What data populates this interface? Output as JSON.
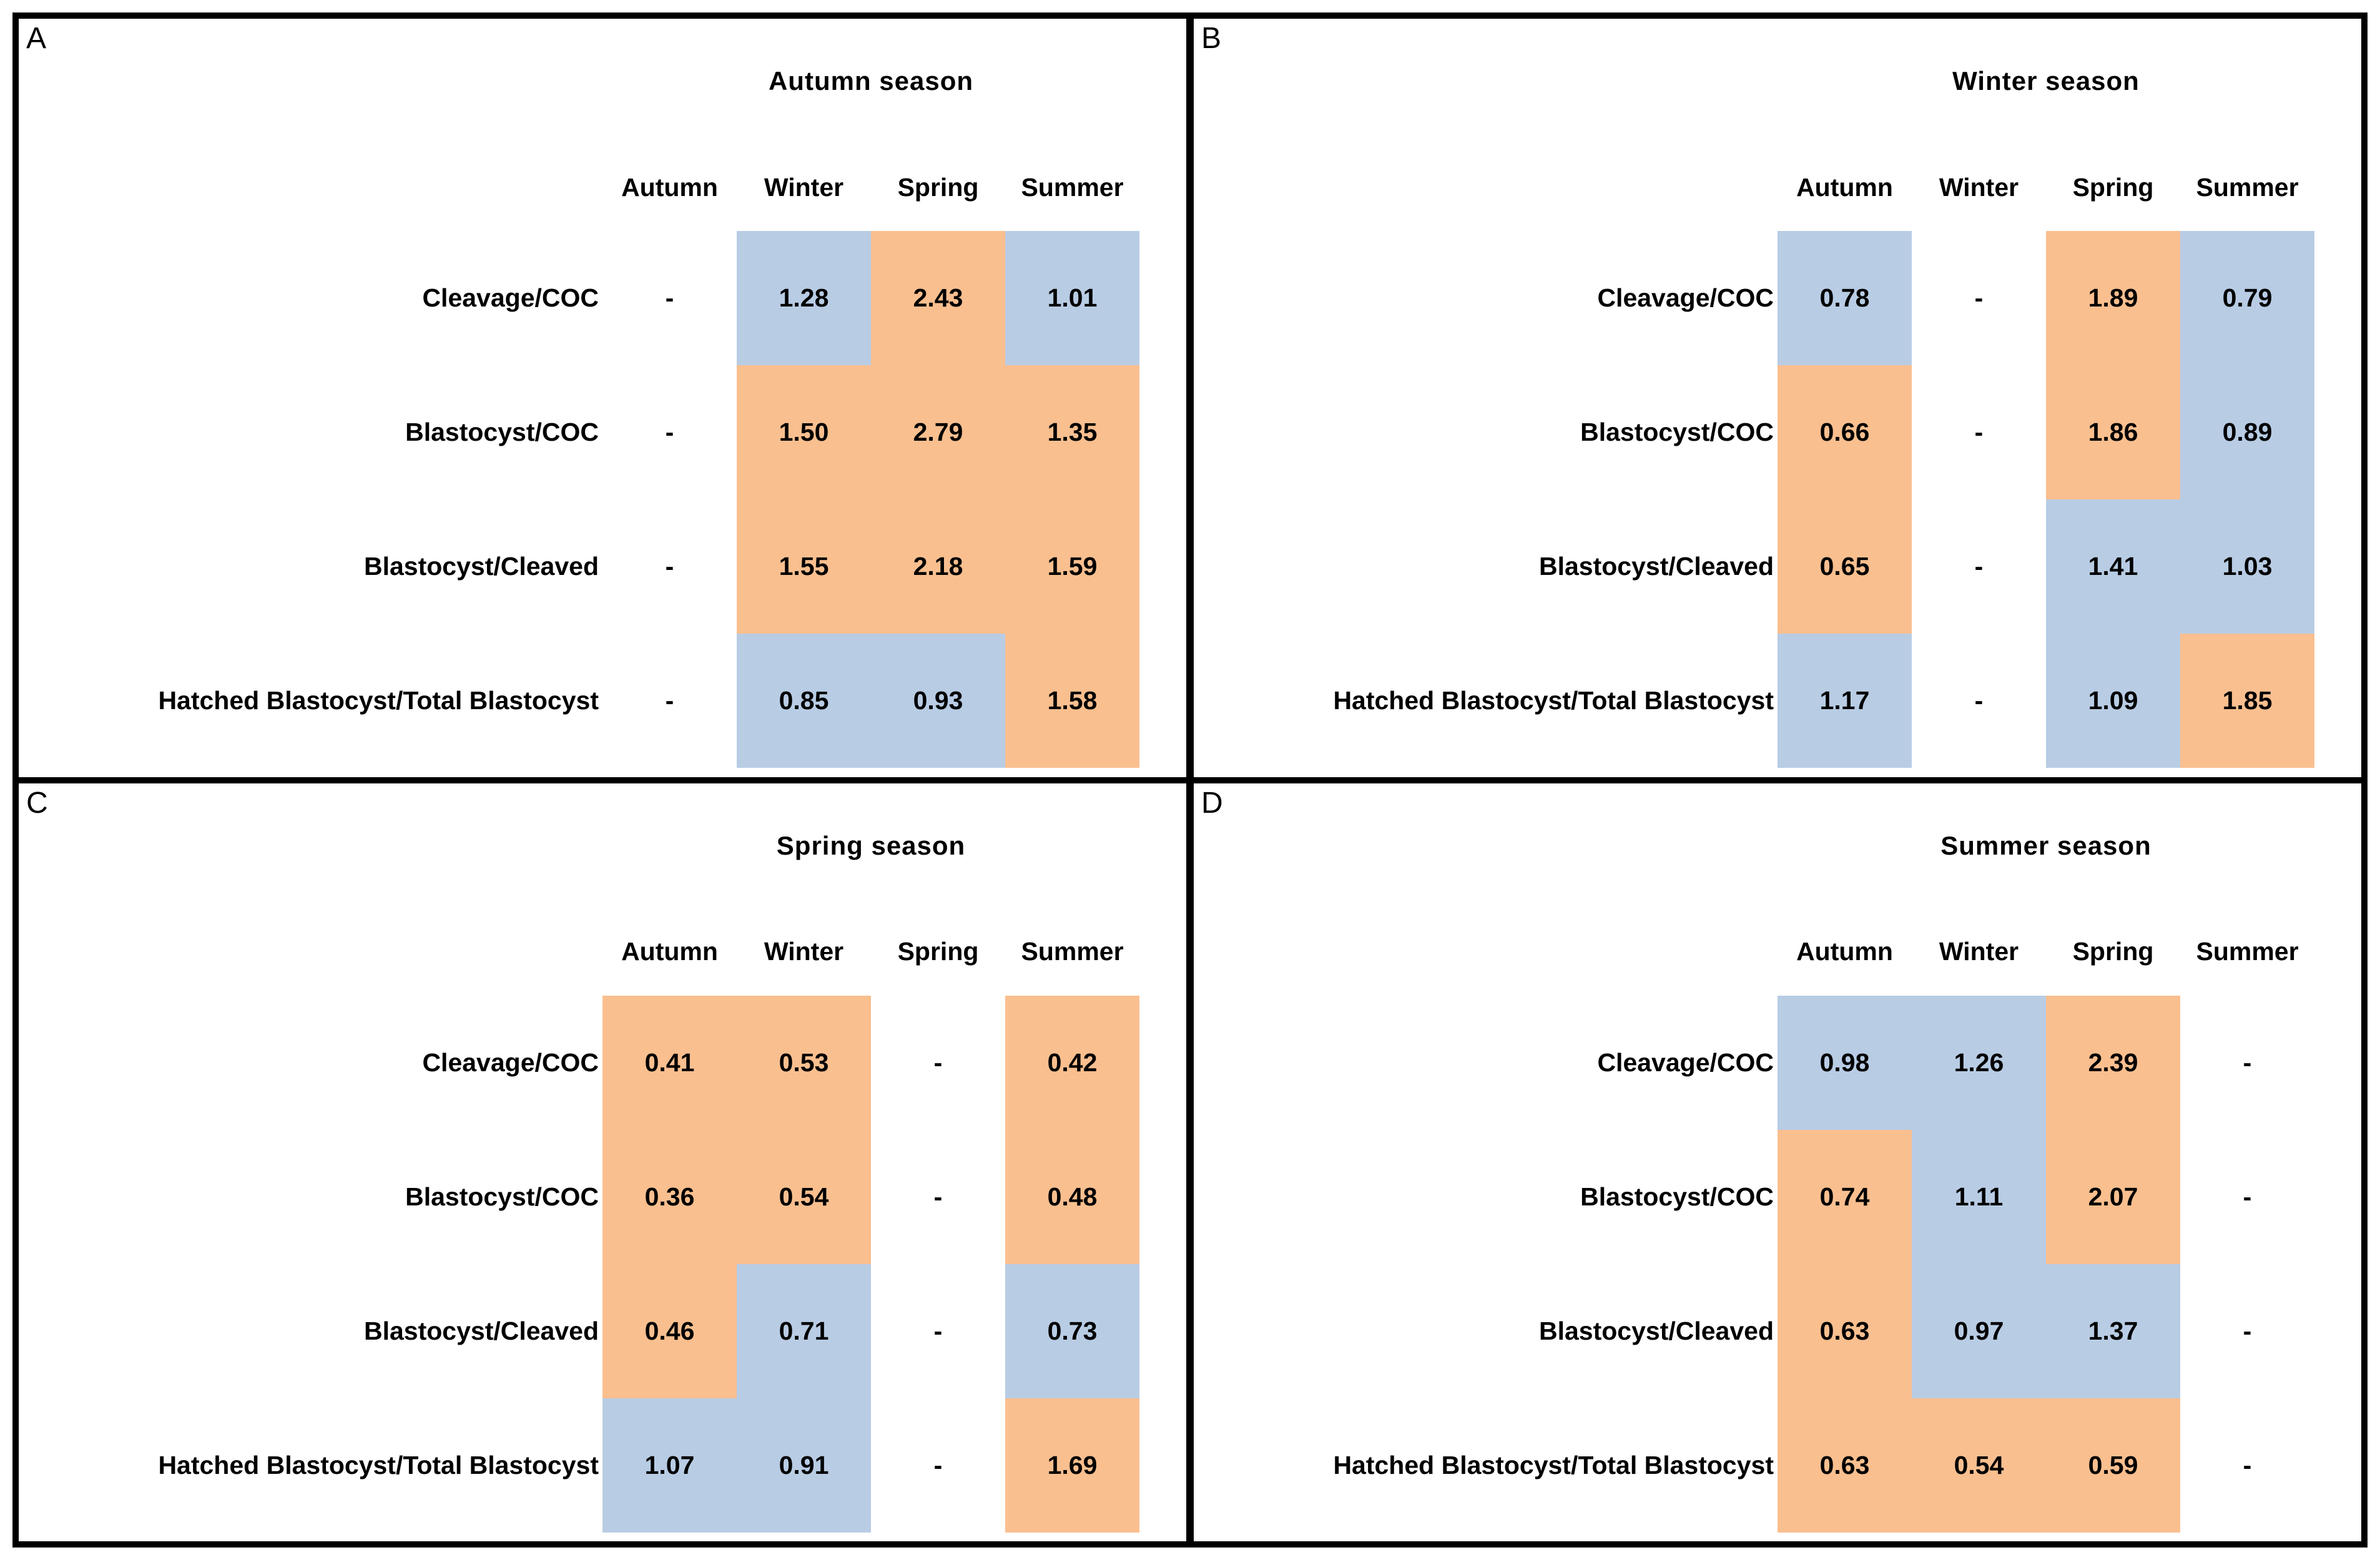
{
  "colors": {
    "blue": "#B8CCE4",
    "orange": "#FABF8F",
    "border": "#000000",
    "text": "#000000"
  },
  "chart_data": [
    {
      "type": "heatmap",
      "panel_label": "A",
      "title": "Autumn season",
      "columns": [
        "Autumn",
        "Winter",
        "Spring",
        "Summer"
      ],
      "reference_column": "Autumn",
      "row_labels": [
        "Cleavage/COC",
        "Blastocyst/COC",
        "Blastocyst/Cleaved",
        "Hatched Blastocyst/Total Blastocyst"
      ],
      "values": [
        [
          null,
          1.28,
          2.43,
          1.01
        ],
        [
          null,
          1.5,
          2.79,
          1.35
        ],
        [
          null,
          1.55,
          2.18,
          1.59
        ],
        [
          null,
          0.85,
          0.93,
          1.58
        ]
      ],
      "rows": [
        {
          "label": "Cleavage/COC",
          "cells": [
            {
              "text": "-",
              "fill": "none"
            },
            {
              "text": "1.28",
              "fill": "blue"
            },
            {
              "text": "2.43",
              "fill": "orange"
            },
            {
              "text": "1.01",
              "fill": "blue"
            }
          ]
        },
        {
          "label": "Blastocyst/COC",
          "cells": [
            {
              "text": "-",
              "fill": "none"
            },
            {
              "text": "1.50",
              "fill": "orange"
            },
            {
              "text": "2.79",
              "fill": "orange"
            },
            {
              "text": "1.35",
              "fill": "orange"
            }
          ]
        },
        {
          "label": "Blastocyst/Cleaved",
          "cells": [
            {
              "text": "-",
              "fill": "none"
            },
            {
              "text": "1.55",
              "fill": "orange"
            },
            {
              "text": "2.18",
              "fill": "orange"
            },
            {
              "text": "1.59",
              "fill": "orange"
            }
          ]
        },
        {
          "label": "Hatched Blastocyst/Total Blastocyst",
          "cells": [
            {
              "text": "-",
              "fill": "none"
            },
            {
              "text": "0.85",
              "fill": "blue"
            },
            {
              "text": "0.93",
              "fill": "blue"
            },
            {
              "text": "1.58",
              "fill": "orange"
            }
          ]
        }
      ]
    },
    {
      "type": "heatmap",
      "panel_label": "B",
      "title": "Winter season",
      "columns": [
        "Autumn",
        "Winter",
        "Spring",
        "Summer"
      ],
      "reference_column": "Winter",
      "row_labels": [
        "Cleavage/COC",
        "Blastocyst/COC",
        "Blastocyst/Cleaved",
        "Hatched Blastocyst/Total Blastocyst"
      ],
      "values": [
        [
          0.78,
          null,
          1.89,
          0.79
        ],
        [
          0.66,
          null,
          1.86,
          0.89
        ],
        [
          0.65,
          null,
          1.41,
          1.03
        ],
        [
          1.17,
          null,
          1.09,
          1.85
        ]
      ],
      "rows": [
        {
          "label": "Cleavage/COC",
          "cells": [
            {
              "text": "0.78",
              "fill": "blue"
            },
            {
              "text": "-",
              "fill": "none"
            },
            {
              "text": "1.89",
              "fill": "orange"
            },
            {
              "text": "0.79",
              "fill": "blue"
            }
          ]
        },
        {
          "label": "Blastocyst/COC",
          "cells": [
            {
              "text": "0.66",
              "fill": "orange"
            },
            {
              "text": "-",
              "fill": "none"
            },
            {
              "text": "1.86",
              "fill": "orange"
            },
            {
              "text": "0.89",
              "fill": "blue"
            }
          ]
        },
        {
          "label": "Blastocyst/Cleaved",
          "cells": [
            {
              "text": "0.65",
              "fill": "orange"
            },
            {
              "text": "-",
              "fill": "none"
            },
            {
              "text": "1.41",
              "fill": "blue"
            },
            {
              "text": "1.03",
              "fill": "blue"
            }
          ]
        },
        {
          "label": "Hatched Blastocyst/Total Blastocyst",
          "cells": [
            {
              "text": "1.17",
              "fill": "blue"
            },
            {
              "text": "-",
              "fill": "none"
            },
            {
              "text": "1.09",
              "fill": "blue"
            },
            {
              "text": "1.85",
              "fill": "orange"
            }
          ]
        }
      ]
    },
    {
      "type": "heatmap",
      "panel_label": "C",
      "title": "Spring season",
      "columns": [
        "Autumn",
        "Winter",
        "Spring",
        "Summer"
      ],
      "reference_column": "Spring",
      "row_labels": [
        "Cleavage/COC",
        "Blastocyst/COC",
        "Blastocyst/Cleaved",
        "Hatched Blastocyst/Total Blastocyst"
      ],
      "values": [
        [
          0.41,
          0.53,
          null,
          0.42
        ],
        [
          0.36,
          0.54,
          null,
          0.48
        ],
        [
          0.46,
          0.71,
          null,
          0.73
        ],
        [
          1.07,
          0.91,
          null,
          1.69
        ]
      ],
      "rows": [
        {
          "label": "Cleavage/COC",
          "cells": [
            {
              "text": "0.41",
              "fill": "orange"
            },
            {
              "text": "0.53",
              "fill": "orange"
            },
            {
              "text": "-",
              "fill": "none"
            },
            {
              "text": "0.42",
              "fill": "orange"
            }
          ]
        },
        {
          "label": "Blastocyst/COC",
          "cells": [
            {
              "text": "0.36",
              "fill": "orange"
            },
            {
              "text": "0.54",
              "fill": "orange"
            },
            {
              "text": "-",
              "fill": "none"
            },
            {
              "text": "0.48",
              "fill": "orange"
            }
          ]
        },
        {
          "label": "Blastocyst/Cleaved",
          "cells": [
            {
              "text": "0.46",
              "fill": "orange"
            },
            {
              "text": "0.71",
              "fill": "blue"
            },
            {
              "text": "-",
              "fill": "none"
            },
            {
              "text": "0.73",
              "fill": "blue"
            }
          ]
        },
        {
          "label": "Hatched Blastocyst/Total Blastocyst",
          "cells": [
            {
              "text": "1.07",
              "fill": "blue"
            },
            {
              "text": "0.91",
              "fill": "blue"
            },
            {
              "text": "-",
              "fill": "none"
            },
            {
              "text": "1.69",
              "fill": "orange"
            }
          ]
        }
      ]
    },
    {
      "type": "heatmap",
      "panel_label": "D",
      "title": "Summer season",
      "columns": [
        "Autumn",
        "Winter",
        "Spring",
        "Summer"
      ],
      "reference_column": "Summer",
      "row_labels": [
        "Cleavage/COC",
        "Blastocyst/COC",
        "Blastocyst/Cleaved",
        "Hatched Blastocyst/Total Blastocyst"
      ],
      "values": [
        [
          0.98,
          1.26,
          2.39,
          null
        ],
        [
          0.74,
          1.11,
          2.07,
          null
        ],
        [
          0.63,
          0.97,
          1.37,
          null
        ],
        [
          0.63,
          0.54,
          0.59,
          null
        ]
      ],
      "rows": [
        {
          "label": "Cleavage/COC",
          "cells": [
            {
              "text": "0.98",
              "fill": "blue"
            },
            {
              "text": "1.26",
              "fill": "blue"
            },
            {
              "text": "2.39",
              "fill": "orange"
            },
            {
              "text": "-",
              "fill": "none"
            }
          ]
        },
        {
          "label": "Blastocyst/COC",
          "cells": [
            {
              "text": "0.74",
              "fill": "orange"
            },
            {
              "text": "1.11",
              "fill": "blue"
            },
            {
              "text": "2.07",
              "fill": "orange"
            },
            {
              "text": "-",
              "fill": "none"
            }
          ]
        },
        {
          "label": "Blastocyst/Cleaved",
          "cells": [
            {
              "text": "0.63",
              "fill": "orange"
            },
            {
              "text": "0.97",
              "fill": "blue"
            },
            {
              "text": "1.37",
              "fill": "blue"
            },
            {
              "text": "-",
              "fill": "none"
            }
          ]
        },
        {
          "label": "Hatched Blastocyst/Total Blastocyst",
          "cells": [
            {
              "text": "0.63",
              "fill": "orange"
            },
            {
              "text": "0.54",
              "fill": "orange"
            },
            {
              "text": "0.59",
              "fill": "orange"
            },
            {
              "text": "-",
              "fill": "none"
            }
          ]
        }
      ]
    }
  ]
}
